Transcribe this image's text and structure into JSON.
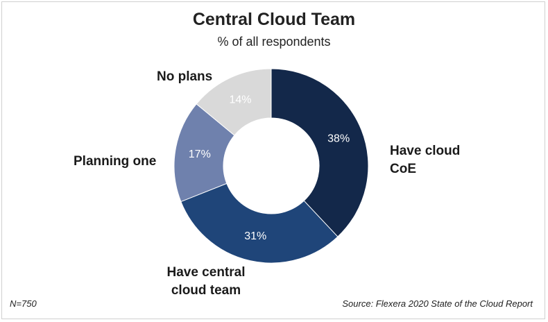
{
  "chart_data": {
    "type": "pie",
    "title": "Central Cloud Team",
    "subtitle": "% of all respondents",
    "categories": [
      "Have cloud CoE",
      "Have central cloud team",
      "Planning one",
      "No plans"
    ],
    "values": [
      38,
      31,
      17,
      14
    ],
    "value_labels": [
      "38%",
      "31%",
      "17%",
      "14%"
    ],
    "colors": [
      "#13284a",
      "#1f4579",
      "#6f81ad",
      "#d9d9d9"
    ],
    "label_color": "#ffffff",
    "donut": true,
    "legend": "none"
  },
  "labels": {
    "have_cloud_coe": "Have cloud CoE",
    "have_central_team": "Have central cloud team",
    "planning_one": "Planning one",
    "no_plans": "No plans"
  },
  "footer": {
    "n": "N=750",
    "source": "Source: Flexera 2020 State of the Cloud Report"
  }
}
